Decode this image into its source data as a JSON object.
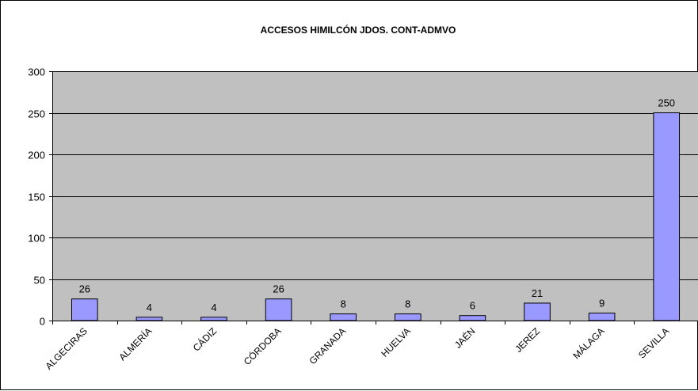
{
  "chart_data": {
    "type": "bar",
    "title": "ACCESOS HIMILCÓN JDOS. CONT-ADMVO",
    "xlabel": "",
    "ylabel": "",
    "categories": [
      "ALGECIRAS",
      "ALMERÍA",
      "CÁDIZ",
      "CÓRDOBA",
      "GRANADA",
      "HUELVA",
      "JAÉN",
      "JEREZ",
      "MÁLAGA",
      "SEVILLA"
    ],
    "values": [
      26,
      4,
      4,
      26,
      8,
      8,
      6,
      21,
      9,
      250
    ],
    "data_labels": [
      "26",
      "4",
      "4",
      "26",
      "8",
      "8",
      "6",
      "21",
      "9",
      "250"
    ],
    "ylim": [
      0,
      300
    ],
    "yticks": [
      0,
      50,
      100,
      150,
      200,
      250,
      300
    ],
    "ytick_labels": [
      "0",
      "50",
      "100",
      "150",
      "200",
      "250",
      "300"
    ],
    "grid": true,
    "legend": "none",
    "colors": {
      "bar_fill": "#9999ff",
      "bar_stroke": "#000000",
      "plot_background": "#c0c0c0",
      "gridline": "#000000"
    }
  }
}
